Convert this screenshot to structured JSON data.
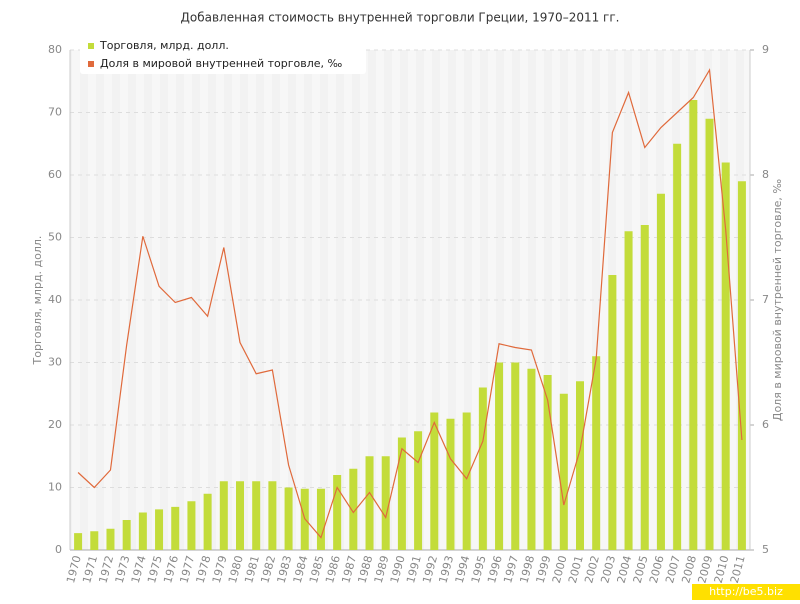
{
  "chart_data": {
    "type": "bar-line",
    "title": "Добавленная стоимость внутренней торговли Греции, 1970–2011 гг.",
    "y_label": "Торговля, млрд. долл.",
    "y2_label": "Доля в мировой внутренней торговле, ‰",
    "watermark": "http://be5.biz",
    "categories": [
      "1970",
      "1971",
      "1972",
      "1973",
      "1974",
      "1975",
      "1976",
      "1977",
      "1978",
      "1979",
      "1980",
      "1981",
      "1982",
      "1983",
      "1984",
      "1985",
      "1986",
      "1987",
      "1988",
      "1989",
      "1990",
      "1991",
      "1992",
      "1993",
      "1994",
      "1995",
      "1996",
      "1997",
      "1998",
      "1999",
      "2000",
      "2001",
      "2002",
      "2003",
      "2004",
      "2005",
      "2006",
      "2007",
      "2008",
      "2009",
      "2010",
      "2011"
    ],
    "series": [
      {
        "name": "Торговля, млрд. долл.",
        "color": "#c3dc3a",
        "type": "bar",
        "values": [
          2.7,
          3.0,
          3.4,
          4.8,
          6.0,
          6.5,
          6.9,
          7.8,
          9.0,
          11,
          11,
          11,
          11,
          10,
          9.8,
          9.8,
          12,
          13,
          15,
          15,
          18,
          19,
          22,
          21,
          22,
          26,
          30,
          30,
          29,
          28,
          25,
          27,
          31,
          44,
          51,
          52,
          57,
          65,
          72,
          69,
          62,
          59
        ]
      },
      {
        "name": "Доля в мировой внутренней торговле, ‰",
        "color": "#e06a3c",
        "type": "line",
        "axis": "y2",
        "values": [
          5.62,
          5.5,
          5.64,
          6.64,
          7.51,
          7.11,
          6.98,
          7.02,
          6.87,
          7.42,
          6.66,
          6.41,
          6.44,
          5.68,
          5.25,
          5.1,
          5.5,
          5.3,
          5.46,
          5.26,
          5.81,
          5.7,
          6.02,
          5.73,
          5.57,
          5.87,
          6.65,
          6.62,
          6.6,
          6.2,
          5.36,
          5.8,
          6.53,
          8.34,
          8.66,
          8.22,
          8.38,
          8.5,
          8.62,
          8.84,
          7.56,
          5.88
        ]
      }
    ],
    "ylim": [
      0,
      80
    ],
    "yticks": [
      0,
      10,
      20,
      30,
      40,
      50,
      60,
      70,
      80
    ],
    "y2lim": [
      5,
      9
    ],
    "y2ticks": [
      5,
      6,
      7,
      8,
      9
    ],
    "grid": true,
    "legend": "top-left"
  }
}
